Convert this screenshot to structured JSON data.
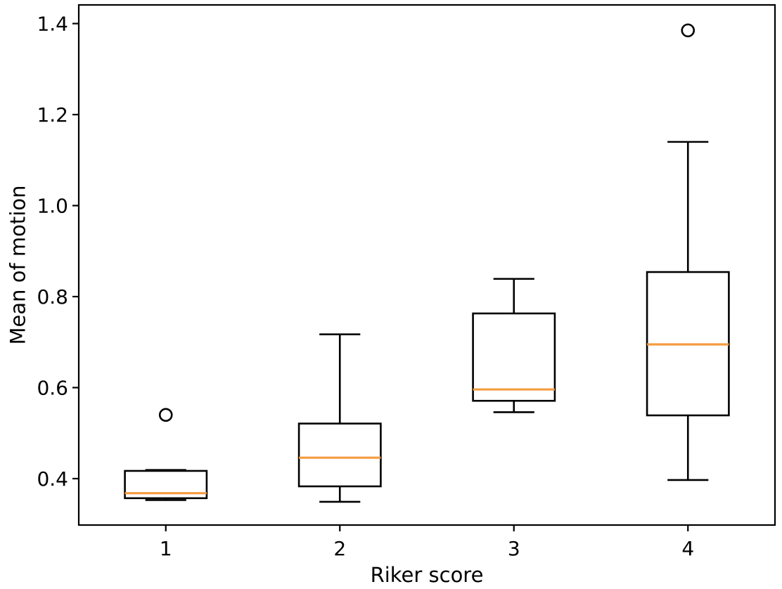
{
  "figure": {
    "background": "#ffffff"
  },
  "chart_data": {
    "type": "box",
    "title": "",
    "xlabel": "Riker score",
    "ylabel": "Mean of motion",
    "categories": [
      "1",
      "2",
      "3",
      "4"
    ],
    "ylim": [
      0.298,
      1.441
    ],
    "yticks": [
      0.4,
      0.6,
      0.8,
      1.0,
      1.2,
      1.4
    ],
    "ytick_labels": [
      "0.4",
      "0.6",
      "0.8",
      "1.0",
      "1.2",
      "1.4"
    ],
    "grid": false,
    "legend_position": "none",
    "colors": {
      "box_edge": "#000000",
      "median": "#f59b3f",
      "axis": "#000000",
      "background": "#ffffff"
    },
    "boxes": [
      {
        "category": "1",
        "whislo": 0.353,
        "q1": 0.357,
        "med": 0.368,
        "q3": 0.417,
        "whishi": 0.419,
        "fliers": [
          0.54
        ]
      },
      {
        "category": "2",
        "whislo": 0.349,
        "q1": 0.383,
        "med": 0.446,
        "q3": 0.521,
        "whishi": 0.717,
        "fliers": []
      },
      {
        "category": "3",
        "whislo": 0.546,
        "q1": 0.571,
        "med": 0.596,
        "q3": 0.763,
        "whishi": 0.839,
        "fliers": []
      },
      {
        "category": "4",
        "whislo": 0.397,
        "q1": 0.539,
        "med": 0.695,
        "q3": 0.854,
        "whishi": 1.14,
        "fliers": [
          1.385
        ]
      }
    ]
  }
}
